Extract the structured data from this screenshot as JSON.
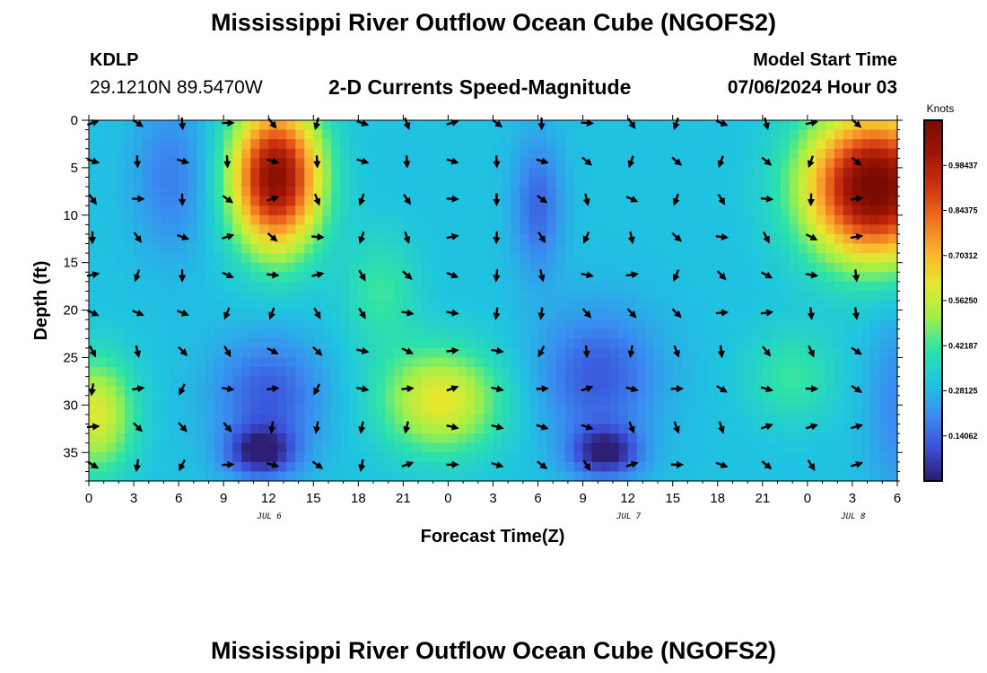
{
  "header": {
    "title": "Mississippi River Outflow Ocean Cube (NGOFS2)",
    "station_id": "KDLP",
    "coordinates": "29.1210N  89.5470W",
    "subtitle": "2-D Currents Speed-Magnitude",
    "model_start_label": "Model Start Time",
    "model_start_value": "07/06/2024 Hour 03"
  },
  "footer": {
    "title_repeat": "Mississippi River Outflow Ocean Cube (NGOFS2)"
  },
  "chart_data": {
    "type": "heatmap",
    "xlabel": "Forecast Time(Z)",
    "ylabel": "Depth (ft)",
    "x_tick_labels": [
      "0",
      "3",
      "6",
      "9",
      "12",
      "15",
      "18",
      "21",
      "0",
      "3",
      "6",
      "9",
      "12",
      "15",
      "18",
      "21",
      "0",
      "3",
      "6"
    ],
    "x_range_hours": [
      0,
      54
    ],
    "date_labels": [
      {
        "label": "JUL 6",
        "hour": 12
      },
      {
        "label": "JUL 7",
        "hour": 36
      },
      {
        "label": "JUL 8",
        "hour": 51
      }
    ],
    "y_tick_labels": [
      "0",
      "5",
      "10",
      "15",
      "20",
      "25",
      "30",
      "35"
    ],
    "ylim": [
      0,
      38
    ],
    "y_inverted": true,
    "colorbar": {
      "title": "Knots",
      "tick_labels": [
        "0.14062",
        "0.28125",
        "0.42187",
        "0.56250",
        "0.70312",
        "0.84375",
        "0.98437"
      ],
      "range": [
        0,
        1.125
      ],
      "colors": [
        "#2c1a6b",
        "#3b4fd8",
        "#3a8cf0",
        "#1fc5e0",
        "#2de3a8",
        "#9ff04a",
        "#e6e72e",
        "#f9b22e",
        "#f06f20",
        "#cc3110",
        "#9e1604",
        "#7a0a03"
      ]
    },
    "speed_hotspots": [
      {
        "hour": 12.5,
        "depth": 8,
        "speed": 1.0
      },
      {
        "hour": 53,
        "depth": 7,
        "speed": 1.1
      },
      {
        "hour": 1,
        "depth": 30,
        "speed": 0.55
      },
      {
        "hour": 24,
        "depth": 29,
        "speed": 0.58
      },
      {
        "hour": 11.5,
        "depth": 35,
        "speed": 0.0
      },
      {
        "hour": 34.5,
        "depth": 35,
        "speed": 0.0
      },
      {
        "hour": 30,
        "depth": 8,
        "speed": 0.12
      },
      {
        "hour": 6,
        "depth": 5,
        "speed": 0.15
      }
    ],
    "vectors": {
      "hours": [
        0,
        3,
        6,
        9,
        12,
        15,
        18,
        21,
        24,
        27,
        30,
        33,
        36,
        39,
        42,
        45,
        48,
        51
      ],
      "depths": [
        0,
        4,
        8,
        12,
        16,
        20,
        24,
        28,
        32,
        36
      ]
    }
  }
}
